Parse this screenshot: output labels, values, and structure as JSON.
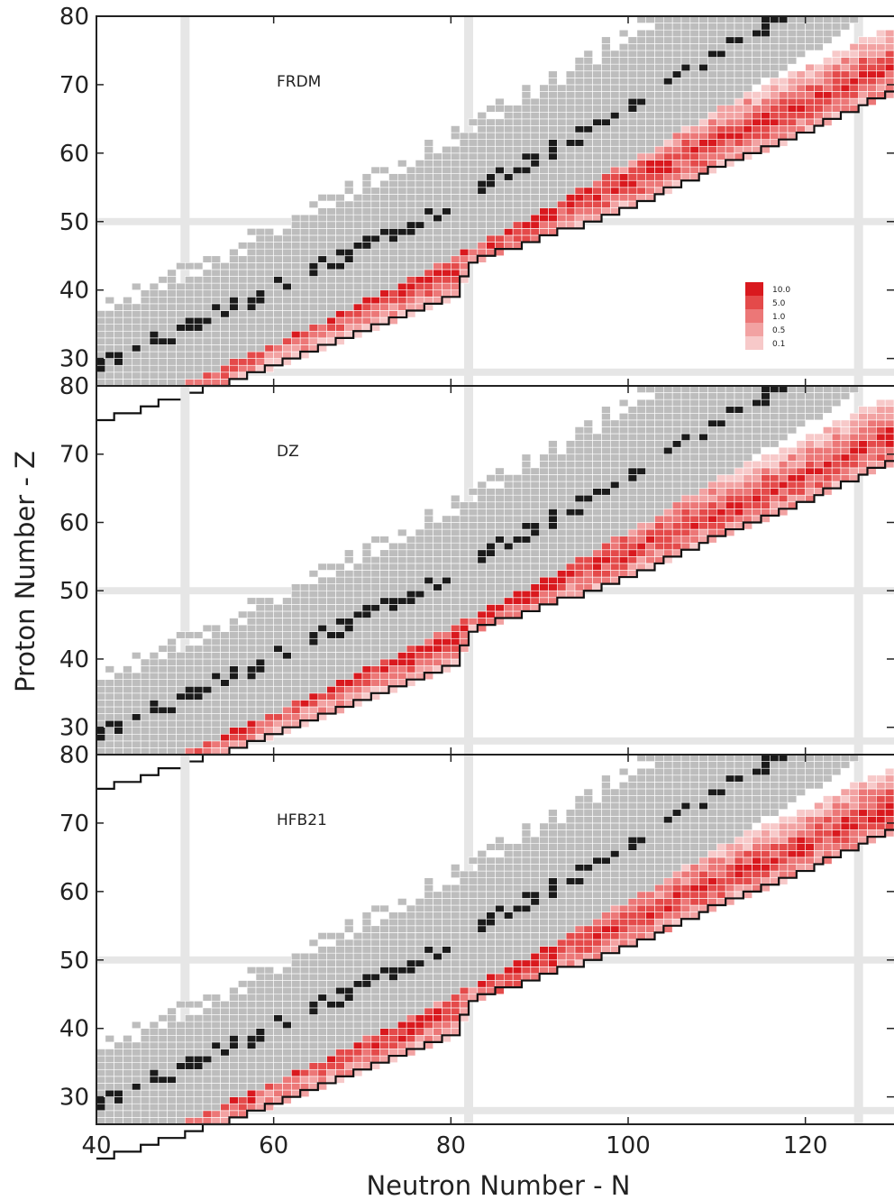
{
  "chart_data": {
    "type": "heatmap",
    "xlabel": "Neutron Number - N",
    "ylabel": "Proton Number - Z",
    "xlim": [
      40,
      130
    ],
    "ylim": [
      26,
      80
    ],
    "x_ticks": [
      "40",
      "60",
      "80",
      "100",
      "120"
    ],
    "y_ticks": [
      "30",
      "40",
      "50",
      "60",
      "70",
      "80"
    ],
    "magic_numbers": {
      "N": [
        50,
        82,
        126
      ],
      "Z": [
        28,
        50
      ]
    },
    "colors": {
      "stable": "#1a1a1a",
      "known": "#bdbdbd",
      "magic_line": "#e6e6e6",
      "drip_line": "#111111",
      "scale": [
        "#f7c9c9",
        "#f2a2a2",
        "#ec7777",
        "#e44a4a",
        "#d9191e"
      ]
    },
    "legend": {
      "placement": "lower-right of top panel",
      "entries": [
        "10.0",
        "5.0",
        "1.0",
        "0.5",
        "0.1"
      ]
    },
    "panels": [
      {
        "name": "FRDM",
        "r_process_path_offset": 0.0
      },
      {
        "name": "DZ",
        "r_process_path_offset": -0.6
      },
      {
        "name": "HFB21",
        "r_process_path_offset": -1.2
      }
    ]
  }
}
